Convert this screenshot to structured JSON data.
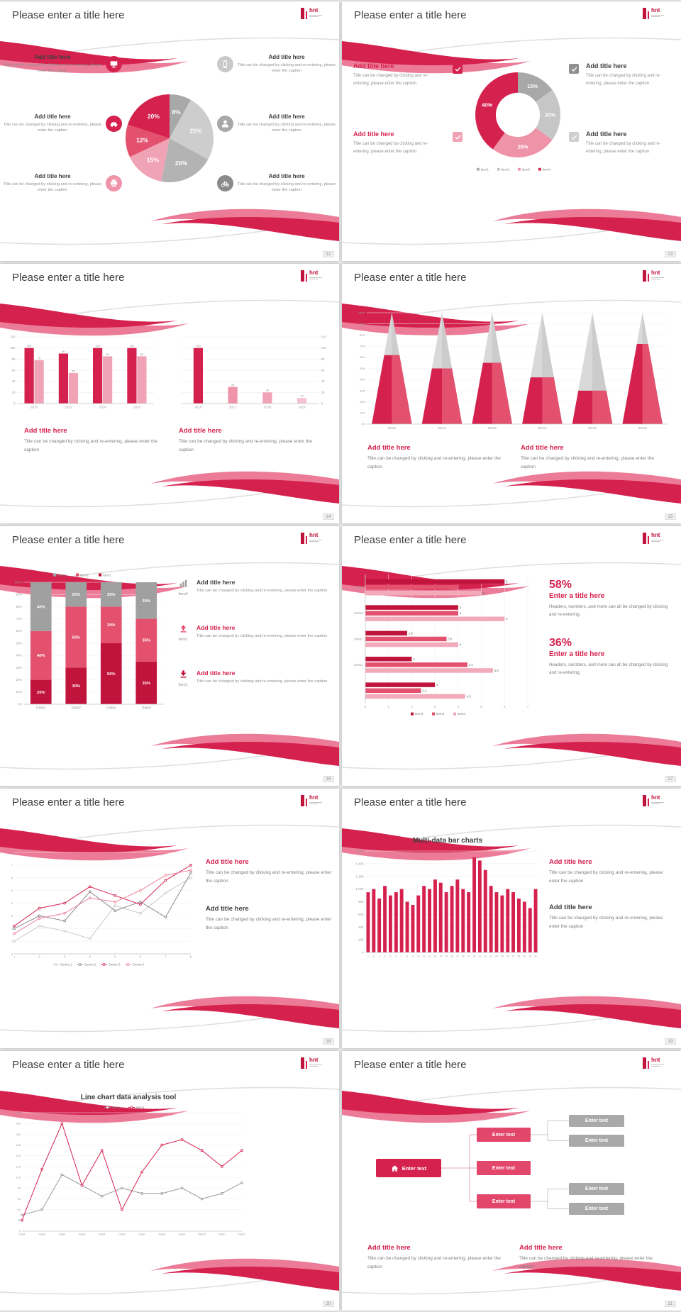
{
  "canvas": {
    "bg": "#e6e6e6",
    "slide_bg": "#ffffff",
    "accent": "#d5214e",
    "accent_light": "#ef93a9",
    "gray": "#a8a8a8"
  },
  "shared": {
    "slide_title": "Please enter a title here",
    "logo_text": "hnt",
    "caption": "Title can be changed by clicking and re-entering, please enter the caption"
  },
  "slides": {
    "s12": {
      "number": "12",
      "callouts_left": [
        {
          "icon": "monitor-icon",
          "icon_bg": "#d5214e",
          "title": "Add title here"
        },
        {
          "icon": "car-icon",
          "icon_bg": "#d5214e",
          "title": "Add title here"
        },
        {
          "icon": "printer-icon",
          "icon_bg": "#ef93a9",
          "title": "Add title here"
        }
      ],
      "callouts_right": [
        {
          "icon": "smartphone-icon",
          "icon_bg": "#c9c9c9",
          "title": "Add title here"
        },
        {
          "icon": "person-icon",
          "icon_bg": "#a8a8a8",
          "title": "Add title here"
        },
        {
          "icon": "bicycle-icon",
          "icon_bg": "#8a8a8a",
          "title": "Add title here"
        }
      ]
    },
    "s13": {
      "number": "13",
      "left": [
        {
          "title": "Add title here",
          "title_color": "#d5214e"
        },
        {
          "title": "Add title here",
          "title_color": "#d5214e"
        }
      ],
      "right": [
        {
          "title": "Add title here",
          "title_color": "#3d3d3d"
        },
        {
          "title": "Add title here",
          "title_color": "#3d3d3d"
        }
      ],
      "checkboxes": [
        {
          "name": "checkbox-red",
          "color": "#d5214e"
        },
        {
          "name": "checkbox-pink",
          "color": "#f0a3b5"
        },
        {
          "name": "checkbox-gray",
          "color": "#8f8f8f"
        },
        {
          "name": "checkbox-lightgray",
          "color": "#cfcfcf"
        }
      ]
    },
    "s14": {
      "number": "14",
      "blocks": [
        {
          "title": "Add title here",
          "title_color": "#d5214e"
        },
        {
          "title": "Add title here",
          "title_color": "#d5214e"
        }
      ]
    },
    "s15": {
      "number": "15",
      "blocks": [
        {
          "title": "Add title here",
          "title_color": "#d5214e"
        },
        {
          "title": "Add title here",
          "title_color": "#d5214e"
        }
      ]
    },
    "s16": {
      "number": "16",
      "rows": [
        {
          "icon": "bar-chart-icon",
          "icon_color": "#9e9e9e",
          "icon_label": "Item3",
          "title": "Add title here",
          "title_color": "#3d3d3d"
        },
        {
          "icon": "arrow-up-icon",
          "icon_color": "#e4516f",
          "icon_label": "Item2",
          "title": "Add title here",
          "title_color": "#d5214e"
        },
        {
          "icon": "arrow-down-icon",
          "icon_color": "#c0143c",
          "icon_label": "Item1",
          "title": "Add title here",
          "title_color": "#d5214e"
        }
      ]
    },
    "s17": {
      "number": "17",
      "stats": [
        {
          "pct": "58%",
          "title": "Enter a title here",
          "caption": "Headers, numbers, and more can all be changed by clicking and re-entering."
        },
        {
          "pct": "36%",
          "title": "Enter a title here",
          "caption": "Headers, numbers, and more can all be changed by clicking and re-entering."
        }
      ]
    },
    "s18": {
      "number": "18",
      "blocks": [
        {
          "title": "Add title here",
          "title_color": "#d5214e"
        },
        {
          "title": "Add title here",
          "title_color": "#3d3d3d"
        }
      ]
    },
    "s19": {
      "number": "19",
      "chart_title": "Multi-data bar charts",
      "blocks": [
        {
          "title": "Add title here",
          "title_color": "#d5214e"
        },
        {
          "title": "Add title here",
          "title_color": "#3d3d3d"
        }
      ]
    },
    "s20": {
      "number": "20",
      "chart_title": "Line chart data analysis tool"
    },
    "s21": {
      "number": "21",
      "home_label": "Enter text",
      "mid_labels": [
        "Enter text",
        "Enter text",
        "Enter text"
      ],
      "right_labels": [
        "Enter text",
        "Enter text",
        "Enter text",
        "Enter text"
      ],
      "blocks": [
        {
          "title": "Add title here",
          "title_color": "#d5214e"
        },
        {
          "title": "Add title here",
          "title_color": "#d5214e"
        }
      ]
    }
  },
  "chart_data": [
    {
      "id": "pie-s12",
      "type": "pie",
      "slide": "12",
      "values": [
        8,
        25,
        20,
        15,
        12,
        20
      ],
      "labels": [
        "8%",
        "25%",
        "20%",
        "15%",
        "12%",
        "20%"
      ],
      "colors": [
        "#a8a8a8",
        "#cdcdcd",
        "#b3b3b3",
        "#f0a3b5",
        "#e4516f",
        "#d5214e"
      ]
    },
    {
      "id": "donut-s13",
      "type": "donut",
      "slide": "13",
      "values": [
        15,
        20,
        25,
        40
      ],
      "labels": [
        "15%",
        "20%",
        "25%",
        "40%"
      ],
      "colors": [
        "#a8a8a8",
        "#c6c6c6",
        "#ef93a9",
        "#d5214e"
      ],
      "legend": [
        {
          "label": "Item1",
          "color": "#a8a8a8"
        },
        {
          "label": "Item2",
          "color": "#c6c6c6"
        },
        {
          "label": "Item3",
          "color": "#ef93a9"
        },
        {
          "label": "Item4",
          "color": "#d5214e"
        }
      ],
      "legend_position": "bottom"
    },
    {
      "id": "bar-s14a",
      "type": "bar",
      "slide": "14",
      "categories": [
        "2010",
        "2012",
        "2014",
        "2016"
      ],
      "series": [
        {
          "name": "Series1",
          "color": "#d5214e",
          "values": [
            100,
            90,
            100,
            100
          ]
        },
        {
          "name": "Series2",
          "color": "#f0a3b5",
          "values": [
            78,
            55,
            85,
            85
          ]
        }
      ],
      "ylim": [
        0,
        120
      ],
      "ystep": 20,
      "show_values": true,
      "axis_side": "left",
      "grid": true
    },
    {
      "id": "bar-s14b",
      "type": "bar",
      "slide": "14",
      "categories": [
        "2016",
        "2017",
        "2018",
        "2019"
      ],
      "series": [
        {
          "name": "Series1",
          "values": [
            100,
            30,
            20,
            10
          ],
          "colors": [
            "#d5214e",
            "#ef93a9",
            "#f0a3b5",
            "#f5c3cf"
          ]
        }
      ],
      "ylim": [
        0,
        120
      ],
      "ystep": 20,
      "show_values": true,
      "axis_side": "right",
      "grid": true
    },
    {
      "id": "cone-s15",
      "type": "cone",
      "slide": "15",
      "categories": [
        "Item1",
        "Item2",
        "Item3",
        "Item4",
        "Item5",
        "Item6"
      ],
      "values": [
        62,
        50,
        55,
        42,
        30,
        72
      ],
      "unit": "%",
      "ylim": [
        0,
        100
      ],
      "ystep": 10,
      "color": "#d5214e",
      "color2": "#e4516f",
      "bg": "#d9d9d9",
      "bg2": "#cccccc"
    },
    {
      "id": "stack-s16",
      "type": "stacked_bar",
      "slide": "16",
      "categories": [
        "Data1",
        "Data2",
        "Data3",
        "Data4"
      ],
      "series": [
        {
          "name": "Item1",
          "color": "#c0143c",
          "values": [
            20,
            30,
            50,
            35
          ]
        },
        {
          "name": "Item2",
          "color": "#e4516f",
          "values": [
            40,
            50,
            30,
            35
          ]
        },
        {
          "name": "Item3",
          "color": "#a0a0a0",
          "values": [
            40,
            20,
            20,
            30
          ]
        }
      ],
      "ylim": [
        0,
        100
      ],
      "ystep": 10,
      "unit": "%",
      "legend": [
        {
          "label": "Item3",
          "color": "#a0a0a0"
        },
        {
          "label": "Item2",
          "color": "#e4516f"
        },
        {
          "label": "Item1",
          "color": "#c0143c"
        }
      ],
      "legend_position": "top"
    },
    {
      "id": "hbar-s17",
      "type": "hbar",
      "slide": "17",
      "groups": [
        {
          "label": "Data4",
          "values": [
            6,
            4,
            5
          ]
        },
        {
          "label": "Data3",
          "values": [
            4,
            4,
            6
          ]
        },
        {
          "label": "Data2",
          "values": [
            1.8,
            3.5,
            4
          ]
        },
        {
          "label": "Data1",
          "values": [
            2,
            4.4,
            5.5
          ]
        },
        {
          "label": "",
          "values": [
            3,
            2.4,
            4.3
          ]
        }
      ],
      "bar_colors": [
        "#c0143c",
        "#e4516f",
        "#f2aabb"
      ],
      "xlim": [
        0,
        7
      ],
      "xstep": 1,
      "legend": [
        {
          "label": "Item3",
          "color": "#c0143c"
        },
        {
          "label": "Item2",
          "color": "#e4516f"
        },
        {
          "label": "Item1",
          "color": "#f2aabb"
        }
      ],
      "legend_position": "bottom"
    },
    {
      "id": "line-s18",
      "type": "line",
      "slide": "18",
      "x": [
        "1",
        "2",
        "3",
        "4",
        "5",
        "6",
        "7",
        "8"
      ],
      "ylim": [
        0,
        8
      ],
      "ystep": 1,
      "legend_position": "bottom",
      "series": [
        {
          "name": "Series 1",
          "color": "#c9c9c9",
          "values": [
            1,
            2.2,
            1.8,
            1.2,
            3.8,
            3.2,
            4.8,
            6
          ]
        },
        {
          "name": "Series 2",
          "color": "#8a8a8a",
          "values": [
            2,
            3,
            2.6,
            4.9,
            3.4,
            4.1,
            2.9,
            6.4
          ]
        },
        {
          "name": "Series 3",
          "color": "#d5214e",
          "values": [
            2.2,
            3.6,
            4,
            5.3,
            4.6,
            3.9,
            5.8,
            7
          ]
        },
        {
          "name": "Series 4",
          "color": "#ef7f98",
          "values": [
            1.6,
            2.8,
            3.2,
            4.4,
            4.1,
            5,
            6.2,
            6.6
          ]
        }
      ]
    },
    {
      "id": "bar-s19",
      "type": "bar",
      "slide": "19",
      "title": "Multi-data bar charts",
      "categories": [
        "1",
        "2",
        "3",
        "4",
        "5",
        "6",
        "7",
        "8",
        "9",
        "10",
        "11",
        "12",
        "13",
        "14",
        "15",
        "16",
        "17",
        "18",
        "19",
        "20",
        "21",
        "22",
        "23",
        "24",
        "25",
        "26",
        "27",
        "28",
        "29",
        "30",
        "31"
      ],
      "series": [
        {
          "name": "Series1",
          "color": "#d5214e",
          "values": [
            950,
            1000,
            850,
            1050,
            900,
            950,
            1000,
            800,
            750,
            900,
            1050,
            1000,
            1150,
            1100,
            950,
            1050,
            1150,
            1000,
            950,
            1500,
            1450,
            1300,
            1050,
            950,
            900,
            1000,
            950,
            850,
            800,
            700,
            1000
          ]
        }
      ],
      "ylim": [
        0,
        1600
      ],
      "ystep": 200,
      "comma": true,
      "show_values": false,
      "axis_side": "left",
      "grid": true
    },
    {
      "id": "line-s20",
      "type": "line",
      "slide": "20",
      "title": "Line chart data analysis tool",
      "x": [
        "Data1",
        "Data2",
        "Data3",
        "Data4",
        "Data5",
        "Data6",
        "Data7",
        "Data8",
        "Data9",
        "Data10",
        "Data11",
        "Data12"
      ],
      "ylim": [
        0,
        220
      ],
      "ystep": 20,
      "legend_position": "top",
      "series": [
        {
          "name": "Item1",
          "color": "#9a9a9a",
          "values": [
            30,
            40,
            105,
            85,
            65,
            80,
            70,
            70,
            80,
            60,
            70,
            90
          ]
        },
        {
          "name": "Item2",
          "color": "#d5214e",
          "values": [
            20,
            115,
            200,
            85,
            150,
            40,
            110,
            160,
            170,
            150,
            120,
            150
          ]
        }
      ]
    }
  ]
}
